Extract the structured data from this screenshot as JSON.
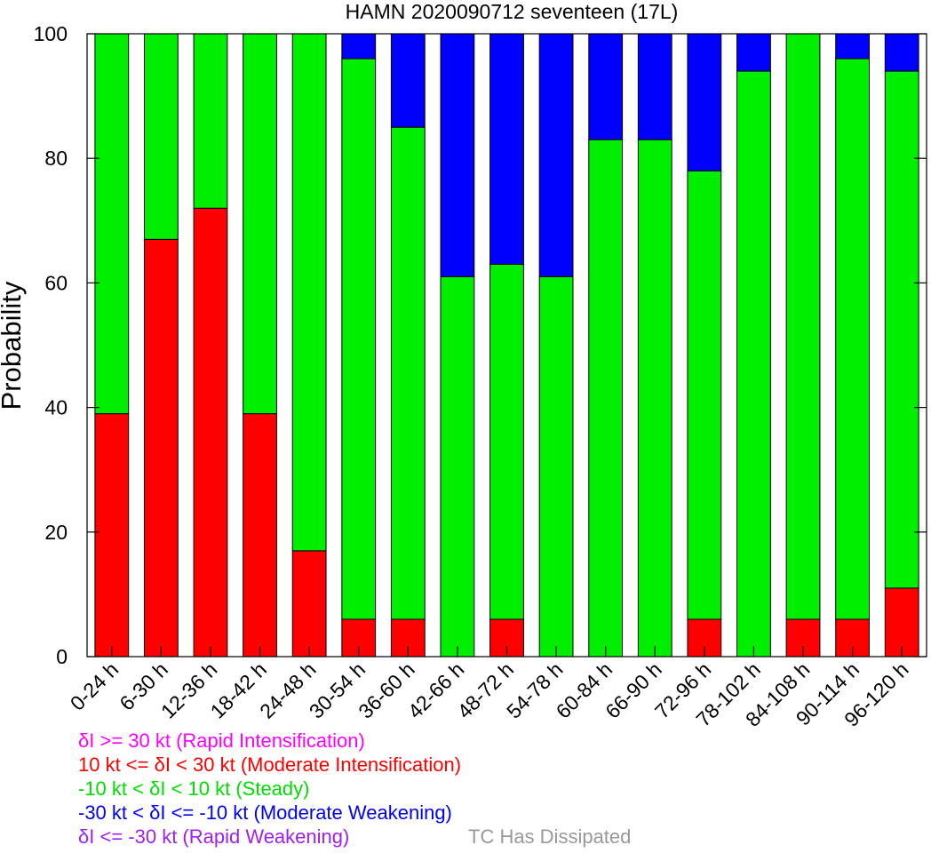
{
  "chart_data": {
    "type": "bar",
    "stacked": true,
    "title": "HAMN 2020090712 seventeen (17L)",
    "xlabel": "",
    "ylabel": "Probability",
    "ylim": [
      0,
      100
    ],
    "yticks": [
      "0",
      "20",
      "40",
      "60",
      "80",
      "100"
    ],
    "grid": false,
    "categories": [
      "0-24 h",
      "6-30 h",
      "12-36 h",
      "18-42 h",
      "24-48 h",
      "30-54 h",
      "36-60 h",
      "42-66 h",
      "48-72 h",
      "54-78 h",
      "60-84 h",
      "66-90 h",
      "72-96 h",
      "78-102 h",
      "84-108 h",
      "90-114 h",
      "96-120 h"
    ],
    "series": [
      {
        "key": "moderate_intensification",
        "color": "#ff0000",
        "values": [
          39,
          67,
          72,
          39,
          17,
          6,
          6,
          0,
          6,
          0,
          0,
          0,
          6,
          0,
          6,
          6,
          11
        ]
      },
      {
        "key": "steady",
        "color": "#00ee00",
        "values": [
          61,
          33,
          28,
          61,
          83,
          90,
          79,
          61,
          57,
          61,
          83,
          83,
          72,
          94,
          94,
          90,
          83
        ]
      },
      {
        "key": "moderate_weakening",
        "color": "#0000ff",
        "values": [
          0,
          0,
          0,
          0,
          0,
          4,
          15,
          39,
          37,
          39,
          17,
          17,
          22,
          6,
          0,
          4,
          6
        ]
      }
    ]
  },
  "legend": [
    {
      "text": "δI >= 30 kt (Rapid Intensification)",
      "color": "#ff00ff"
    },
    {
      "text": "10 kt <= δI < 30 kt (Moderate Intensification)",
      "color": "#ff0000"
    },
    {
      "text": "-10 kt < δI < 10 kt (Steady)",
      "color": "#00dd00"
    },
    {
      "text": "-30 kt < δI <= -10 kt (Moderate Weakening)",
      "color": "#0000ff"
    },
    {
      "text": "δI <= -30 kt (Rapid Weakening)",
      "color": "#a020f0"
    }
  ],
  "dissipated": {
    "text": "TC Has Dissipated",
    "color": "#999999"
  }
}
